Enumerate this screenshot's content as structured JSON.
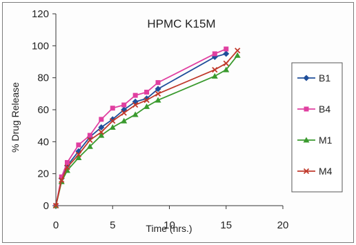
{
  "chart_data": {
    "type": "line",
    "title": "HPMC K15M",
    "xlabel": "Time (hrs.)",
    "ylabel": "% Drug Release",
    "xlim": [
      0,
      20
    ],
    "ylim": [
      0,
      120
    ],
    "xticks": [
      "0",
      "5",
      "10",
      "15",
      "20"
    ],
    "yticks": [
      "0",
      "20",
      "40",
      "60",
      "80",
      "100",
      "120"
    ],
    "legend_position": "right",
    "grid": false,
    "series": [
      {
        "name": "B1",
        "color": "#1f4e9a",
        "marker": "diamond",
        "x": [
          0,
          0.5,
          1,
          2,
          3,
          4,
          5,
          6,
          7,
          8,
          9,
          14,
          15
        ],
        "y": [
          0,
          17,
          25,
          34,
          43,
          49,
          54,
          60,
          65,
          67,
          73,
          93,
          95
        ]
      },
      {
        "name": "B4",
        "color": "#e03fa0",
        "marker": "square",
        "x": [
          0,
          0.5,
          1,
          2,
          3,
          4,
          5,
          6,
          7,
          8,
          9,
          14,
          15
        ],
        "y": [
          0,
          18,
          27,
          38,
          44,
          54,
          61,
          63,
          69,
          71,
          77,
          95,
          98
        ]
      },
      {
        "name": "M1",
        "color": "#3a9a2e",
        "marker": "triangle",
        "x": [
          0,
          0.5,
          1,
          2,
          3,
          4,
          5,
          6,
          7,
          8,
          9,
          14,
          15,
          16
        ],
        "y": [
          0,
          15,
          22,
          30,
          37,
          44,
          49,
          53,
          57,
          62,
          66,
          81,
          85,
          94
        ]
      },
      {
        "name": "M4",
        "color": "#c0392b",
        "marker": "x",
        "x": [
          0,
          0.5,
          1,
          2,
          3,
          4,
          5,
          6,
          7,
          8,
          9,
          14,
          15,
          16
        ],
        "y": [
          0,
          16,
          24,
          32,
          41,
          46,
          53,
          58,
          63,
          66,
          70,
          85,
          89,
          97
        ]
      }
    ]
  }
}
